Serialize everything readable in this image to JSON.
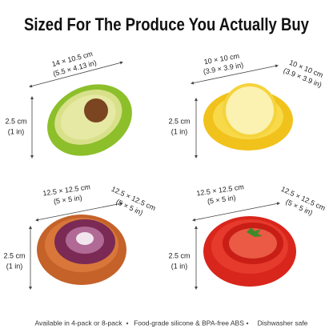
{
  "header": {
    "title": "Sized For The Produce You Actually Buy"
  },
  "products": [
    {
      "width": [
        "14 × 10.5 cm",
        "(5.5 × 4.13 in)"
      ],
      "height": [
        "2.5 cm",
        "(1 in)"
      ]
    },
    {
      "width": [
        "10 × 10 cm",
        "(3.9 × 3.9 in)"
      ],
      "depth": [
        "10 × 10 cm",
        "(3.9 × 3.9 in)"
      ],
      "height": [
        "2.5 cm",
        "(1 in)"
      ]
    },
    {
      "width": [
        "12.5 × 12.5 cm",
        "(5 × 5 in)"
      ],
      "depth": [
        "12.5 × 12.5 cm",
        "(5 × 5 in)"
      ],
      "height": [
        "2.5 cm",
        "(1 in)"
      ]
    },
    {
      "width": [
        "12.5 × 12.5 cm",
        "(5 × 5 in)"
      ],
      "depth": [
        "12.5 × 12.5 cm",
        "(5 × 5 in)"
      ],
      "height": [
        "2.5 cm",
        "(1 in)"
      ]
    }
  ],
  "footer": {
    "items": [
      "Available in 4-pack or 8-pack",
      "Food-grade silicone & BPA-free ABS",
      "Dishwasher safe"
    ]
  }
}
